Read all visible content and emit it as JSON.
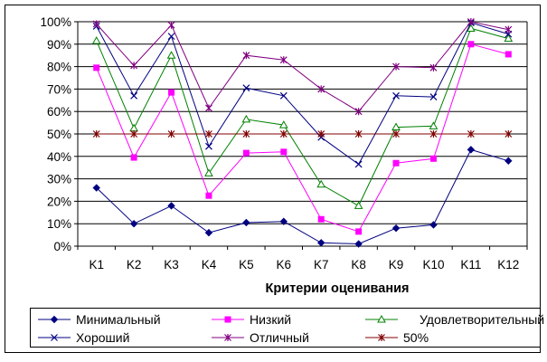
{
  "chart_data": {
    "type": "line",
    "xlabel": "Критерии оценивания",
    "categories": [
      "K1",
      "K2",
      "K3",
      "K4",
      "K5",
      "K6",
      "K7",
      "K8",
      "K9",
      "K10",
      "K11",
      "K12"
    ],
    "ylim": [
      0,
      100
    ],
    "yticks": [
      "0%",
      "10%",
      "20%",
      "30%",
      "40%",
      "50%",
      "60%",
      "70%",
      "80%",
      "90%",
      "100%"
    ],
    "grid": "horizontal",
    "legend_position": "bottom",
    "series": [
      {
        "name": "Минимальный",
        "color": "#000080",
        "marker": "diamond",
        "values": [
          26,
          10,
          18,
          6,
          10.5,
          11,
          1.5,
          1,
          8,
          9.5,
          43,
          38
        ]
      },
      {
        "name": "Низкий",
        "color": "#FF00FF",
        "marker": "square",
        "values": [
          79.5,
          39.5,
          68.5,
          22.5,
          41.5,
          42,
          12,
          6.5,
          37,
          39,
          90,
          85.5
        ]
      },
      {
        "name": "Удовлетворительный",
        "color": "#008000",
        "marker": "triangle",
        "values": [
          91.5,
          52.5,
          85,
          32.5,
          56.5,
          54,
          27.5,
          18,
          53,
          53.5,
          97,
          92.5
        ]
      },
      {
        "name": "Хороший",
        "color": "#000080",
        "marker": "x",
        "values": [
          98,
          67,
          93.5,
          44.5,
          70.5,
          67,
          48.5,
          36.5,
          67,
          66.5,
          99.5,
          94.5
        ]
      },
      {
        "name": "Отличный",
        "color": "#800080",
        "marker": "star",
        "values": [
          99,
          80.5,
          98.5,
          61.5,
          85,
          83,
          70,
          60,
          80,
          79.5,
          100,
          96.5
        ]
      },
      {
        "name": "50%",
        "color": "#800000",
        "marker": "star",
        "values": [
          50,
          50,
          50,
          50,
          50,
          50,
          50,
          50,
          50,
          50,
          50,
          50
        ]
      }
    ]
  }
}
